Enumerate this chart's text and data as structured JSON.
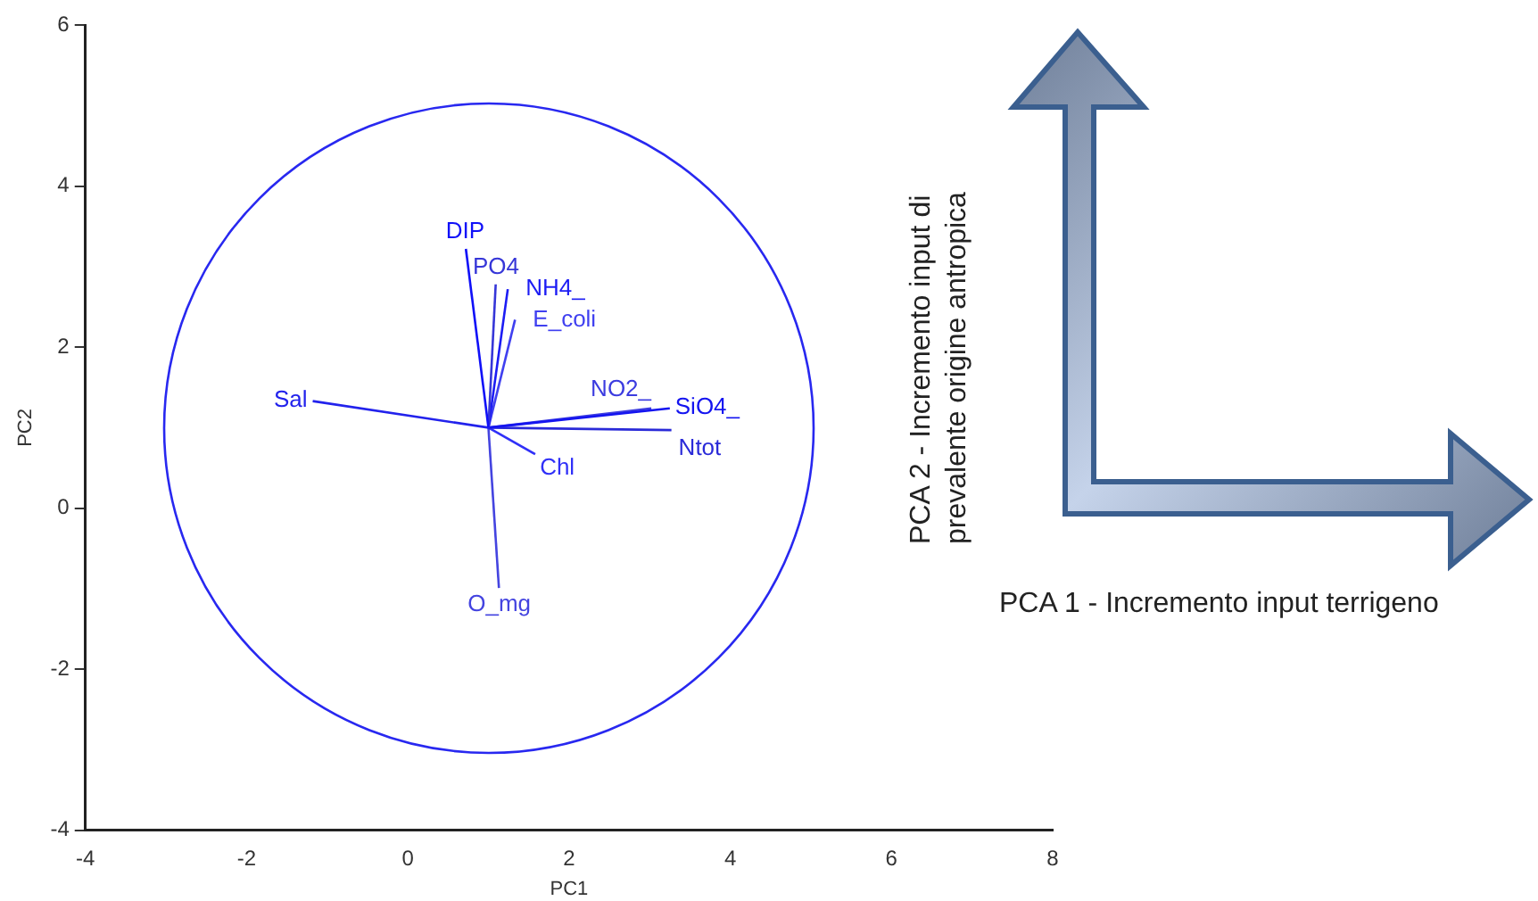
{
  "chart_data": {
    "type": "line",
    "xlabel": "PC1",
    "ylabel": "PC2",
    "xlim": [
      -4,
      8
    ],
    "ylim": [
      -4,
      6
    ],
    "xticks": [
      -4,
      -2,
      0,
      2,
      4,
      6,
      8
    ],
    "yticks": [
      -4,
      -2,
      0,
      2,
      4,
      6
    ],
    "series": [
      {
        "name": "DIP",
        "color": "#1010f8",
        "x": [
          1,
          0.72
        ],
        "values": [
          1,
          3.22
        ]
      },
      {
        "name": "PO4",
        "color": "#3636d8",
        "x": [
          1,
          1.09
        ],
        "values": [
          1,
          2.78
        ]
      },
      {
        "name": "NH4_",
        "color": "#1c1cf4",
        "x": [
          1,
          1.24
        ],
        "values": [
          1,
          2.72
        ]
      },
      {
        "name": "E_coli",
        "color": "#4040f0",
        "x": [
          1,
          1.33
        ],
        "values": [
          1,
          2.34
        ]
      },
      {
        "name": "Sal",
        "color": "#2222ec",
        "x": [
          1,
          -1.18
        ],
        "values": [
          1,
          1.33
        ]
      },
      {
        "name": "SiO4_",
        "color": "#1414f0",
        "x": [
          1,
          3.25
        ],
        "values": [
          1,
          1.24
        ]
      },
      {
        "name": "NO2_",
        "color": "#3c3ce0",
        "x": [
          1,
          3.02
        ],
        "values": [
          1,
          1.24
        ]
      },
      {
        "name": "Ntot",
        "color": "#2a2ad8",
        "x": [
          1,
          3.27
        ],
        "values": [
          1,
          0.97
        ]
      },
      {
        "name": "Chl",
        "color": "#3030f8",
        "x": [
          1,
          1.58
        ],
        "values": [
          1,
          0.67
        ]
      },
      {
        "name": "O_mg",
        "color": "#4444e0",
        "x": [
          1,
          1.13
        ],
        "values": [
          1,
          -0.99
        ]
      }
    ],
    "annotations": [
      "PCA 2 - Incremento  input di prevalente origine antropica",
      "PCA 1 - Incremento input terrigeno"
    ]
  }
}
